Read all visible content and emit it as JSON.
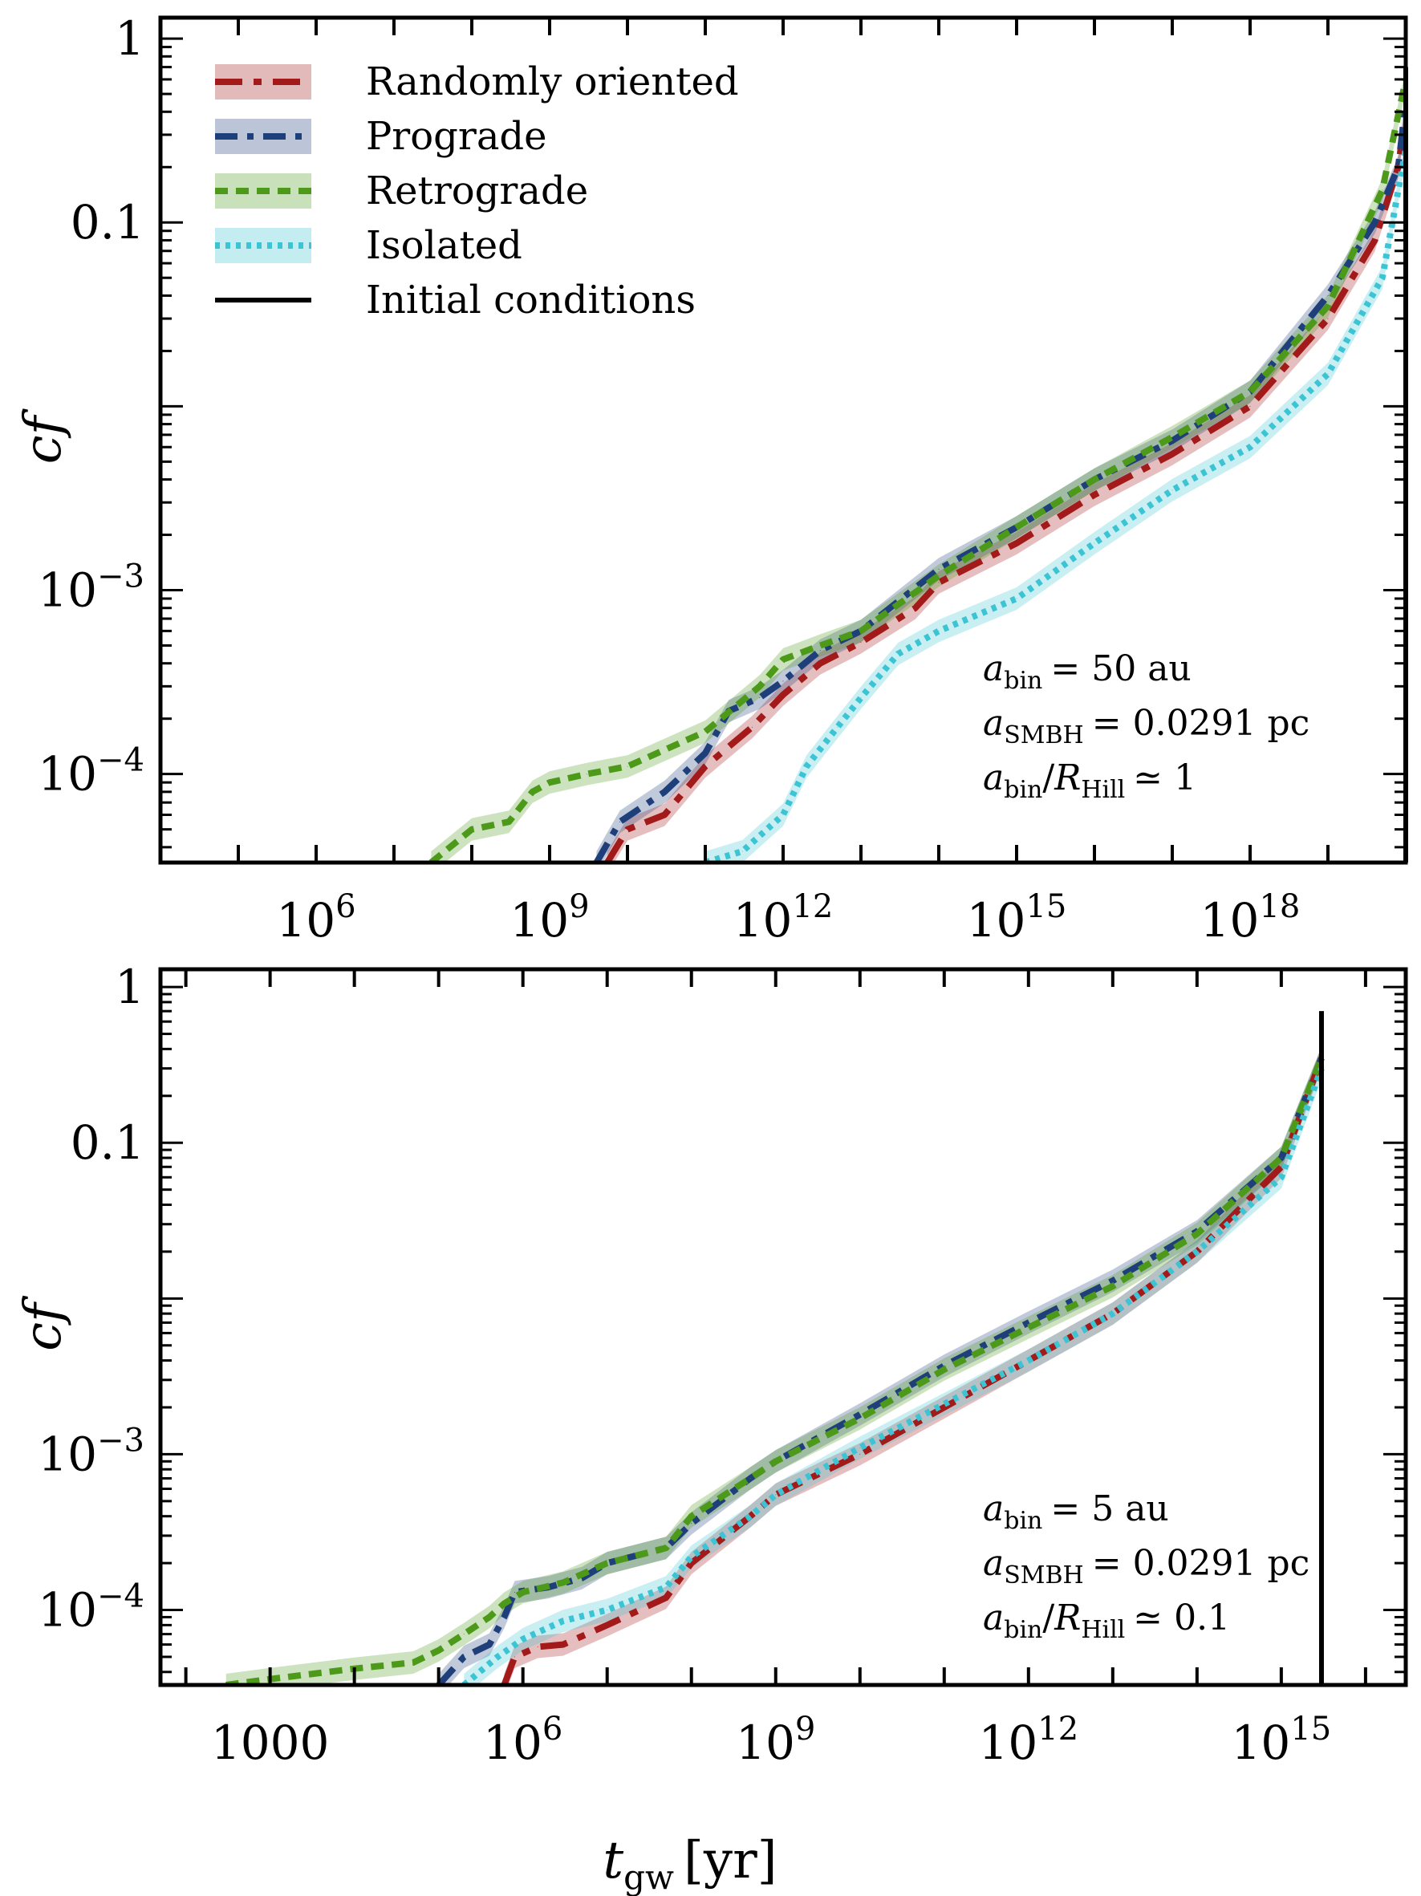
{
  "figure": {
    "xlabel_main": "t",
    "xlabel_sub": "gw",
    "xlabel_unit": "[yr]",
    "colors": {
      "random": "#a31a1a",
      "prograde": "#1f3f7a",
      "retrograde": "#4d9a1a",
      "isolated": "#3cc4d4",
      "initial": "#000000"
    }
  },
  "legend": {
    "placement": "top-left",
    "entries": [
      "Randomly oriented",
      "Prograde",
      "Retrograde",
      "Isolated",
      "Initial conditions"
    ]
  },
  "chart_data": [
    {
      "type": "line",
      "xscale": "log",
      "yscale": "log",
      "xlabel": "",
      "ylabel": "cf",
      "xlim": [
        10000.0,
        1e+20
      ],
      "ylim": [
        3.3e-05,
        1.3
      ],
      "x_ticks": [
        {
          "value": 1000000.0,
          "label": "10",
          "exp": "6"
        },
        {
          "value": 1000000000.0,
          "label": "10",
          "exp": "9"
        },
        {
          "value": 1000000000000.0,
          "label": "10",
          "exp": "12"
        },
        {
          "value": 1000000000000000.0,
          "label": "10",
          "exp": "15"
        },
        {
          "value": 1e+18,
          "label": "10",
          "exp": "18"
        }
      ],
      "y_ticks": [
        {
          "value": 1,
          "label": "1",
          "exp": ""
        },
        {
          "value": 0.1,
          "label": "0.1",
          "exp": ""
        },
        {
          "value": 0.001,
          "label": "10",
          "exp": "−3"
        },
        {
          "value": 0.0001,
          "label": "10",
          "exp": "−4"
        }
      ],
      "initial_conditions_x": 1e+20,
      "annotation": {
        "line1": "= 50 au",
        "line2": "= 0.0291 pc",
        "line3": "≃ 1"
      },
      "series": [
        {
          "name": "Randomly oriented",
          "x": [
            5500000000.0,
            10000000000.0,
            30000000000.0,
            100000000000.0,
            400000000000.0,
            1000000000000.0,
            3000000000000.0,
            10000000000000.0,
            50000000000000.0,
            100000000000000.0,
            1000000000000000.0,
            1e+16,
            1e+17,
            1e+18,
            1e+19,
            4e+19,
            8e+19,
            1e+20
          ],
          "y": [
            3.3e-05,
            5e-05,
            6e-05,
            0.00011,
            0.00018,
            0.00027,
            0.0004,
            0.00052,
            0.0008,
            0.0011,
            0.0018,
            0.0033,
            0.0055,
            0.01,
            0.03,
            0.08,
            0.2,
            0.4
          ]
        },
        {
          "name": "Prograde",
          "x": [
            4000000000.0,
            8000000000.0,
            30000000000.0,
            100000000000.0,
            200000000000.0,
            500000000000.0,
            1000000000000.0,
            3000000000000.0,
            10000000000000.0,
            100000000000000.0,
            1000000000000000.0,
            1e+16,
            1e+17,
            1e+18,
            1e+19,
            4e+19,
            8e+19,
            1e+20
          ],
          "y": [
            3.3e-05,
            5.5e-05,
            8e-05,
            0.00013,
            0.00022,
            0.00026,
            0.00032,
            0.00047,
            0.0006,
            0.0013,
            0.0022,
            0.004,
            0.0065,
            0.012,
            0.04,
            0.1,
            0.2,
            0.45
          ]
        },
        {
          "name": "Retrograde",
          "x": [
            30000000.0,
            100000000.0,
            300000000.0,
            600000000.0,
            1000000000.0,
            3000000000.0,
            10000000000.0,
            100000000000.0,
            500000000000.0,
            1000000000000.0,
            3000000000000.0,
            10000000000000.0,
            100000000000000.0,
            1000000000000000.0,
            1e+16,
            1e+17,
            1e+18,
            1e+19,
            5e+19,
            1e+20
          ],
          "y": [
            3.3e-05,
            5e-05,
            5.5e-05,
            8e-05,
            9e-05,
            0.0001,
            0.00011,
            0.00017,
            0.0003,
            0.00042,
            0.0005,
            0.0006,
            0.0012,
            0.0022,
            0.004,
            0.0068,
            0.012,
            0.035,
            0.15,
            0.6
          ]
        },
        {
          "name": "Isolated",
          "x": [
            100000000000.0,
            300000000000.0,
            1000000000000.0,
            2000000000000.0,
            5000000000000.0,
            10000000000000.0,
            30000000000000.0,
            100000000000000.0,
            1000000000000000.0,
            1e+16,
            1e+17,
            1e+18,
            1e+19,
            5e+19,
            1e+20
          ],
          "y": [
            3.3e-05,
            3.8e-05,
            6e-05,
            0.00011,
            0.00018,
            0.00026,
            0.00045,
            0.0006,
            0.0009,
            0.0018,
            0.0035,
            0.006,
            0.015,
            0.05,
            0.25
          ]
        }
      ]
    },
    {
      "type": "line",
      "xscale": "log",
      "yscale": "log",
      "xlabel": "t_gw [yr]",
      "ylabel": "cf",
      "xlim": [
        50,
        3e+16
      ],
      "ylim": [
        3.3e-05,
        1.3
      ],
      "x_ticks": [
        {
          "value": 1000,
          "label": "1000",
          "exp": ""
        },
        {
          "value": 1000000.0,
          "label": "10",
          "exp": "6"
        },
        {
          "value": 1000000000.0,
          "label": "10",
          "exp": "9"
        },
        {
          "value": 1000000000000.0,
          "label": "10",
          "exp": "12"
        },
        {
          "value": 1000000000000000.0,
          "label": "10",
          "exp": "15"
        }
      ],
      "y_ticks": [
        {
          "value": 1,
          "label": "1",
          "exp": ""
        },
        {
          "value": 0.1,
          "label": "0.1",
          "exp": ""
        },
        {
          "value": 0.001,
          "label": "10",
          "exp": "−3"
        },
        {
          "value": 0.0001,
          "label": "10",
          "exp": "−4"
        }
      ],
      "initial_conditions_x": 3000000000000000.0,
      "annotation": {
        "line1": "= 5 au",
        "line2": "= 0.0291 pc",
        "line3": "≃ 0.1"
      },
      "series": [
        {
          "name": "Randomly oriented",
          "x": [
            600000.0,
            800000.0,
            1500000.0,
            3000000.0,
            10000000.0,
            50000000.0,
            100000000.0,
            500000000.0,
            1000000000.0,
            10000000000.0,
            100000000000.0,
            1000000000000.0,
            10000000000000.0,
            100000000000000.0,
            1000000000000000.0,
            3000000000000000.0
          ],
          "y": [
            3.3e-05,
            5e-05,
            5.8e-05,
            6e-05,
            8e-05,
            0.00012,
            0.0002,
            0.0004,
            0.00055,
            0.001,
            0.002,
            0.004,
            0.008,
            0.02,
            0.07,
            0.35
          ]
        },
        {
          "name": "Prograde",
          "x": [
            100000.0,
            200000.0,
            400000.0,
            600000.0,
            800000.0,
            2000000.0,
            5000000.0,
            10000000.0,
            50000000.0,
            100000000.0,
            500000000.0,
            1000000000.0,
            10000000000.0,
            100000000000.0,
            1000000000000.0,
            10000000000000.0,
            100000000000000.0,
            1000000000000000.0,
            3000000000000000.0
          ],
          "y": [
            3.3e-05,
            5e-05,
            6e-05,
            9e-05,
            0.00013,
            0.00014,
            0.00016,
            0.0002,
            0.00025,
            0.00036,
            0.0007,
            0.0009,
            0.0018,
            0.0037,
            0.007,
            0.013,
            0.027,
            0.08,
            0.35
          ]
        },
        {
          "name": "Retrograde",
          "x": [
            300.0,
            1000.0,
            10000.0,
            50000.0,
            100000.0,
            200000.0,
            400000.0,
            600000.0,
            1000000.0,
            3000000.0,
            10000000.0,
            50000000.0,
            100000000.0,
            500000000.0,
            1000000000.0,
            10000000000.0,
            100000000000.0,
            1000000000000.0,
            10000000000000.0,
            100000000000000.0,
            1000000000000000.0,
            3000000000000000.0
          ],
          "y": [
            3.3e-05,
            3.6e-05,
            4.2e-05,
            4.6e-05,
            5.5e-05,
            7e-05,
            9e-05,
            0.00011,
            0.00013,
            0.00015,
            0.0002,
            0.00025,
            0.0004,
            0.0007,
            0.0009,
            0.0017,
            0.0035,
            0.0065,
            0.012,
            0.026,
            0.08,
            0.35
          ]
        },
        {
          "name": "Isolated",
          "x": [
            200000.0,
            500000.0,
            1000000.0,
            3000000.0,
            10000000.0,
            50000000.0,
            100000000.0,
            500000000.0,
            1000000000.0,
            10000000000.0,
            100000000000.0,
            1000000000000.0,
            10000000000000.0,
            100000000000000.0,
            1000000000000000.0,
            3000000000000000.0
          ],
          "y": [
            3.3e-05,
            5e-05,
            6.5e-05,
            8.5e-05,
            0.0001,
            0.00014,
            0.00022,
            0.0004,
            0.00055,
            0.0011,
            0.0021,
            0.004,
            0.008,
            0.02,
            0.06,
            0.3
          ]
        }
      ]
    }
  ]
}
